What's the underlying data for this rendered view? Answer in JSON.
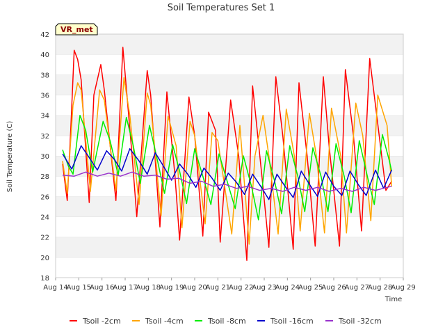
{
  "chart_data": {
    "type": "line",
    "title": "Soil Temperatures Set 1",
    "xlabel": "Time",
    "ylabel": "Soil Temperature (C)",
    "badge": "VR_met",
    "x_ticks": [
      "Aug 14",
      "Aug 15",
      "Aug 16",
      "Aug 17",
      "Aug 18",
      "Aug 19",
      "Aug 20",
      "Aug 21",
      "Aug 22",
      "Aug 23",
      "Aug 24",
      "Aug 25",
      "Aug 26",
      "Aug 27",
      "Aug 28",
      "Aug 29"
    ],
    "y_ticks": [
      18,
      20,
      22,
      24,
      26,
      28,
      30,
      32,
      34,
      36,
      38,
      40,
      42
    ],
    "xlim": [
      0,
      15
    ],
    "ylim": [
      18,
      42
    ],
    "grid": "horizontal bands",
    "legend_position": "bottom",
    "x_unit": "days since Aug 14 00:00",
    "series": [
      {
        "name": "Tsoil -2cm",
        "color": "#ff0000",
        "x": [
          0.3,
          0.5,
          0.65,
          0.8,
          0.95,
          1.1,
          1.45,
          1.65,
          1.95,
          2.1,
          2.6,
          2.9,
          3.3,
          3.5,
          3.95,
          4.1,
          4.5,
          4.8,
          5.15,
          5.35,
          5.75,
          6.0,
          6.35,
          6.6,
          6.9,
          7.1,
          7.55,
          7.9,
          8.25,
          8.5,
          8.9,
          9.2,
          9.5,
          9.8,
          10.25,
          10.5,
          10.85,
          11.2,
          11.55,
          11.8,
          12.25,
          12.5,
          12.85,
          13.2,
          13.55,
          13.8,
          14.25,
          14.5
        ],
        "values": [
          29.2,
          25.6,
          32.5,
          40.4,
          39.5,
          37.5,
          25.4,
          36.0,
          39.0,
          36.5,
          25.6,
          40.7,
          30.0,
          24.0,
          38.4,
          36.0,
          23.0,
          36.3,
          28.0,
          21.7,
          35.8,
          32.0,
          22.1,
          34.3,
          32.5,
          21.5,
          35.5,
          30.0,
          19.7,
          36.9,
          28.0,
          21.0,
          37.8,
          32.0,
          20.8,
          37.2,
          30.0,
          21.1,
          37.8,
          31.0,
          21.1,
          38.5,
          32.0,
          22.6,
          39.6,
          35.0,
          26.6,
          27.5
        ]
      },
      {
        "name": "Tsoil -4cm",
        "color": "#ffa500",
        "x": [
          0.3,
          0.5,
          0.75,
          0.95,
          1.1,
          1.5,
          1.9,
          2.1,
          2.6,
          2.95,
          3.2,
          3.6,
          3.95,
          4.1,
          4.55,
          4.85,
          5.2,
          5.45,
          5.8,
          6.0,
          6.45,
          6.75,
          7.0,
          7.6,
          7.95,
          8.35,
          8.6,
          8.95,
          9.2,
          9.6,
          9.95,
          10.3,
          10.55,
          10.95,
          11.25,
          11.6,
          11.9,
          12.3,
          12.55,
          12.95,
          13.25,
          13.6,
          13.9,
          14.3,
          14.5
        ],
        "values": [
          29.5,
          26.3,
          35.0,
          37.2,
          36.5,
          26.5,
          36.5,
          35.5,
          26.6,
          37.7,
          34.0,
          25.2,
          36.2,
          35.0,
          24.1,
          33.9,
          31.0,
          22.9,
          33.4,
          32.0,
          23.3,
          32.3,
          31.5,
          22.3,
          33.0,
          21.3,
          30.0,
          34.0,
          30.0,
          22.3,
          34.6,
          30.0,
          22.6,
          34.2,
          30.0,
          22.4,
          34.7,
          30.0,
          22.4,
          35.2,
          32.0,
          23.6,
          36.0,
          33.0,
          27.0
        ]
      },
      {
        "name": "Tsoil -8cm",
        "color": "#00ee00",
        "x": [
          0.3,
          0.55,
          0.75,
          1.05,
          1.3,
          1.6,
          2.05,
          2.35,
          2.7,
          3.05,
          3.35,
          3.65,
          4.05,
          4.35,
          4.7,
          5.05,
          5.35,
          5.65,
          6.0,
          6.35,
          6.7,
          7.05,
          7.4,
          7.75,
          8.1,
          8.45,
          8.75,
          9.1,
          9.45,
          9.75,
          10.1,
          10.45,
          10.75,
          11.1,
          11.45,
          11.75,
          12.1,
          12.45,
          12.75,
          13.1,
          13.45,
          13.75,
          14.1,
          14.4,
          14.5
        ],
        "values": [
          30.6,
          29.0,
          28.2,
          34.0,
          32.5,
          28.4,
          33.4,
          31.5,
          28.1,
          33.8,
          31.0,
          27.3,
          33.0,
          30.0,
          26.3,
          31.1,
          28.5,
          25.3,
          30.7,
          28.0,
          25.2,
          30.2,
          27.5,
          24.8,
          30.0,
          27.0,
          23.7,
          30.5,
          27.5,
          24.3,
          31.0,
          28.0,
          24.5,
          30.8,
          28.0,
          24.5,
          31.2,
          28.0,
          24.4,
          31.5,
          28.0,
          25.2,
          32.1,
          29.5,
          28.5
        ]
      },
      {
        "name": "Tsoil -16cm",
        "color": "#0000cc",
        "x": [
          0.3,
          0.7,
          1.1,
          1.4,
          1.8,
          2.2,
          2.55,
          2.85,
          3.2,
          3.6,
          3.95,
          4.3,
          4.65,
          5.0,
          5.35,
          5.7,
          6.05,
          6.4,
          6.75,
          7.1,
          7.45,
          7.8,
          8.15,
          8.5,
          8.85,
          9.2,
          9.55,
          9.9,
          10.25,
          10.6,
          10.95,
          11.3,
          11.65,
          12.0,
          12.35,
          12.7,
          13.05,
          13.4,
          13.8,
          14.15,
          14.5
        ],
        "values": [
          30.2,
          28.7,
          31.0,
          30.0,
          28.6,
          30.5,
          29.6,
          28.5,
          30.7,
          29.5,
          28.2,
          30.3,
          29.0,
          27.6,
          29.2,
          28.2,
          26.9,
          28.8,
          27.8,
          26.6,
          28.3,
          27.4,
          26.2,
          28.2,
          27.0,
          25.7,
          28.2,
          27.0,
          25.9,
          28.5,
          27.2,
          26.0,
          28.4,
          27.0,
          26.1,
          28.5,
          27.2,
          26.1,
          28.6,
          26.8,
          28.6
        ]
      },
      {
        "name": "Tsoil -32cm",
        "color": "#9932cc",
        "x": [
          0.3,
          0.8,
          1.3,
          1.8,
          2.3,
          2.8,
          3.3,
          3.8,
          4.3,
          4.8,
          5.3,
          5.8,
          6.3,
          6.8,
          7.3,
          7.8,
          8.3,
          8.8,
          9.3,
          9.8,
          10.3,
          10.8,
          11.3,
          11.8,
          12.3,
          12.8,
          13.3,
          13.8,
          14.3,
          14.5
        ],
        "values": [
          28.1,
          28.0,
          28.4,
          28.0,
          28.3,
          28.0,
          28.4,
          28.0,
          28.1,
          27.7,
          27.8,
          27.3,
          27.5,
          27.0,
          27.2,
          26.8,
          27.0,
          26.6,
          26.8,
          26.5,
          26.9,
          26.6,
          26.9,
          26.5,
          26.8,
          26.5,
          26.9,
          26.6,
          26.9,
          27.0
        ]
      }
    ]
  }
}
